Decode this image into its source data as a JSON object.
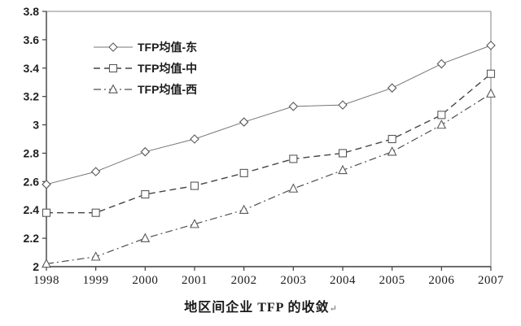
{
  "chart_data": {
    "type": "line",
    "caption": "地区间企业 TFP 的收敛",
    "caption_end_mark": "↵",
    "categories": [
      "1998",
      "1999",
      "2000",
      "2001",
      "2002",
      "2003",
      "2004",
      "2005",
      "2006",
      "2007"
    ],
    "series": [
      {
        "id": "east",
        "name": "TFP均值-东",
        "marker": "diamond",
        "line_style": "solid",
        "values": [
          2.58,
          2.67,
          2.81,
          2.9,
          3.02,
          3.13,
          3.14,
          3.26,
          3.43,
          3.56
        ]
      },
      {
        "id": "central",
        "name": "TFP均值-中",
        "marker": "square",
        "line_style": "dashed",
        "values": [
          2.38,
          2.38,
          2.51,
          2.57,
          2.66,
          2.76,
          2.8,
          2.9,
          3.07,
          3.36
        ]
      },
      {
        "id": "west",
        "name": "TFP均值-西",
        "marker": "triangle",
        "line_style": "dashdot",
        "values": [
          2.02,
          2.07,
          2.2,
          2.3,
          2.4,
          2.55,
          2.68,
          2.81,
          3.0,
          3.22
        ]
      }
    ],
    "ylim": [
      2,
      3.8
    ],
    "ytick_labels": [
      "2",
      "2.2",
      "2.4",
      "2.6",
      "2.8",
      "3",
      "3.2",
      "3.4",
      "3.6",
      "3.8"
    ],
    "xlabel": "",
    "ylabel": "",
    "legend_position": "top-left-inside",
    "grid": false,
    "colors": {
      "east_line": "#757575",
      "central_line": "#454545",
      "west_line": "#4f4f4f",
      "marker_stroke": "#595959",
      "marker_fill": "#ffffff",
      "axis": "#3f3f3f",
      "plot_border": "#9f9f9f",
      "text": "#1c1c1c",
      "background": "#ffffff"
    }
  }
}
